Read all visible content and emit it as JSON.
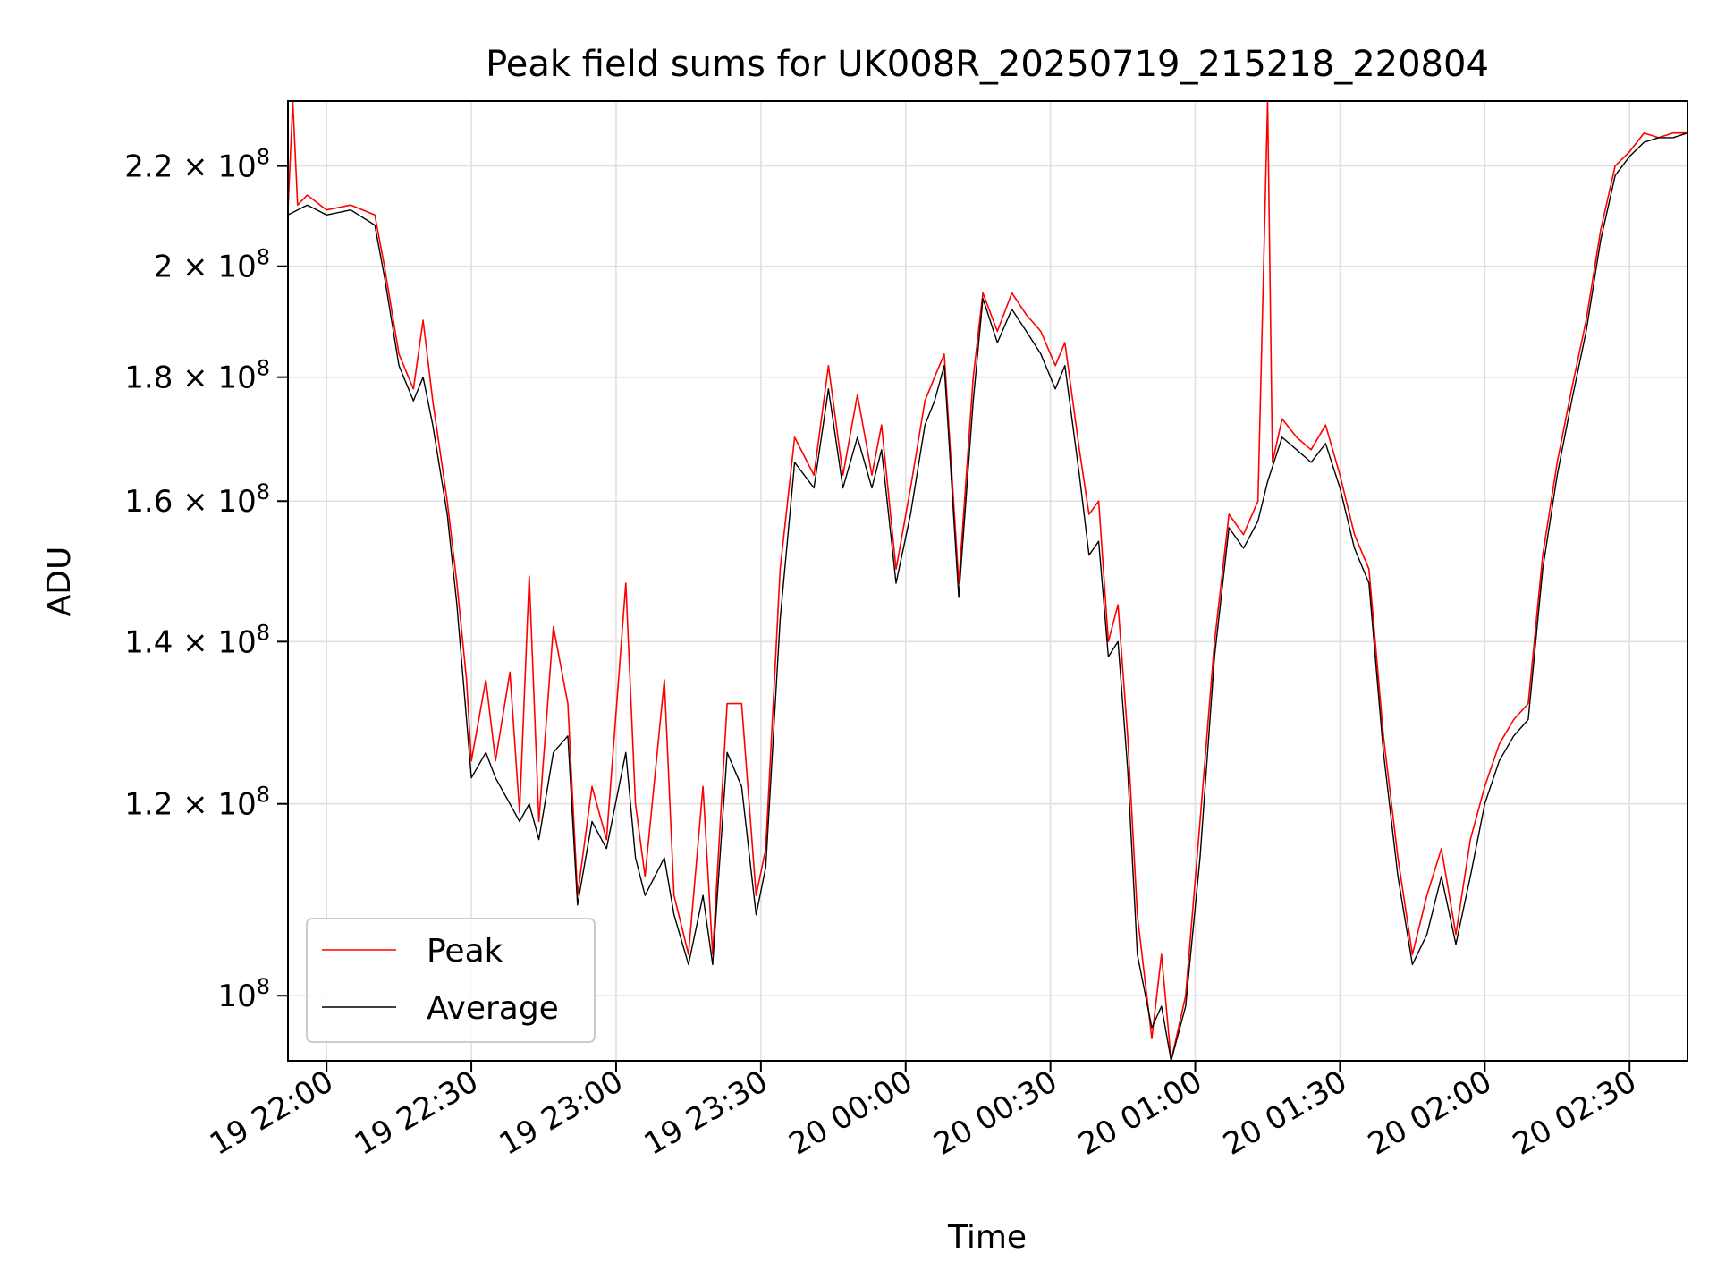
{
  "chart_data": {
    "type": "line",
    "title": "Peak field sums for UK008R_20250719_215218_220804",
    "xlabel": "Time",
    "ylabel": "ADU",
    "x_axis": {
      "kind": "datetime",
      "range": [
        "2025-07-19 21:52",
        "2025-07-20 02:42"
      ],
      "ticks": [
        {
          "value": "2025-07-19 22:00",
          "label": "19 22:00"
        },
        {
          "value": "2025-07-19 22:30",
          "label": "19 22:30"
        },
        {
          "value": "2025-07-19 23:00",
          "label": "19 23:00"
        },
        {
          "value": "2025-07-19 23:30",
          "label": "19 23:30"
        },
        {
          "value": "2025-07-20 00:00",
          "label": "20 00:00"
        },
        {
          "value": "2025-07-20 00:30",
          "label": "20 00:30"
        },
        {
          "value": "2025-07-20 01:00",
          "label": "20 01:00"
        },
        {
          "value": "2025-07-20 01:30",
          "label": "20 01:30"
        },
        {
          "value": "2025-07-20 02:00",
          "label": "20 02:00"
        },
        {
          "value": "2025-07-20 02:30",
          "label": "20 02:30"
        }
      ]
    },
    "y_axis": {
      "scale": "log",
      "range": [
        94000000,
        234000000
      ],
      "ticks": [
        {
          "value": 100000000,
          "mantissa": "",
          "exp": "8"
        },
        {
          "value": 120000000,
          "mantissa": "1.2",
          "exp": "8"
        },
        {
          "value": 140000000,
          "mantissa": "1.4",
          "exp": "8"
        },
        {
          "value": 160000000,
          "mantissa": "1.6",
          "exp": "8"
        },
        {
          "value": 180000000,
          "mantissa": "1.8",
          "exp": "8"
        },
        {
          "value": 200000000,
          "mantissa": "2",
          "exp": "8"
        },
        {
          "value": 220000000,
          "mantissa": "2.2",
          "exp": "8"
        }
      ]
    },
    "grid": true,
    "legend_position": "lower-left",
    "series": [
      {
        "name": "Peak",
        "color": "#ff0000",
        "points": [
          [
            "2025-07-19 21:52",
            211000000
          ],
          [
            "2025-07-19 21:53",
            234000000
          ],
          [
            "2025-07-19 21:54",
            212000000
          ],
          [
            "2025-07-19 21:56",
            214000000
          ],
          [
            "2025-07-19 22:00",
            211000000
          ],
          [
            "2025-07-19 22:05",
            212000000
          ],
          [
            "2025-07-19 22:10",
            210000000
          ],
          [
            "2025-07-19 22:12",
            200000000
          ],
          [
            "2025-07-19 22:15",
            184000000
          ],
          [
            "2025-07-19 22:18",
            178000000
          ],
          [
            "2025-07-19 22:20",
            190000000
          ],
          [
            "2025-07-19 22:22",
            176000000
          ],
          [
            "2025-07-19 22:25",
            160000000
          ],
          [
            "2025-07-19 22:27",
            148000000
          ],
          [
            "2025-07-19 22:29",
            135000000
          ],
          [
            "2025-07-19 22:30",
            125000000
          ],
          [
            "2025-07-19 22:33",
            135000000
          ],
          [
            "2025-07-19 22:35",
            125000000
          ],
          [
            "2025-07-19 22:38",
            136000000
          ],
          [
            "2025-07-19 22:40",
            119000000
          ],
          [
            "2025-07-19 22:42",
            149000000
          ],
          [
            "2025-07-19 22:44",
            118000000
          ],
          [
            "2025-07-19 22:47",
            142000000
          ],
          [
            "2025-07-19 22:50",
            132000000
          ],
          [
            "2025-07-19 22:52",
            110000000
          ],
          [
            "2025-07-19 22:55",
            122000000
          ],
          [
            "2025-07-19 22:58",
            116000000
          ],
          [
            "2025-07-19 23:02",
            148000000
          ],
          [
            "2025-07-19 23:04",
            120000000
          ],
          [
            "2025-07-19 23:06",
            112000000
          ],
          [
            "2025-07-19 23:10",
            135000000
          ],
          [
            "2025-07-19 23:12",
            110000000
          ],
          [
            "2025-07-19 23:15",
            104000000
          ],
          [
            "2025-07-19 23:18",
            122000000
          ],
          [
            "2025-07-19 23:20",
            104000000
          ],
          [
            "2025-07-19 23:23",
            132000000
          ],
          [
            "2025-07-19 23:26",
            132000000
          ],
          [
            "2025-07-19 23:29",
            110000000
          ],
          [
            "2025-07-19 23:31",
            115000000
          ],
          [
            "2025-07-19 23:34",
            150000000
          ],
          [
            "2025-07-19 23:37",
            170000000
          ],
          [
            "2025-07-19 23:41",
            164000000
          ],
          [
            "2025-07-19 23:44",
            182000000
          ],
          [
            "2025-07-19 23:47",
            164000000
          ],
          [
            "2025-07-19 23:50",
            177000000
          ],
          [
            "2025-07-19 23:53",
            164000000
          ],
          [
            "2025-07-19 23:55",
            172000000
          ],
          [
            "2025-07-19 23:58",
            150000000
          ],
          [
            "2025-07-20 00:01",
            162000000
          ],
          [
            "2025-07-20 00:04",
            176000000
          ],
          [
            "2025-07-20 00:06",
            180000000
          ],
          [
            "2025-07-20 00:08",
            184000000
          ],
          [
            "2025-07-20 00:11",
            148000000
          ],
          [
            "2025-07-20 00:14",
            180000000
          ],
          [
            "2025-07-20 00:16",
            195000000
          ],
          [
            "2025-07-20 00:19",
            188000000
          ],
          [
            "2025-07-20 00:22",
            195000000
          ],
          [
            "2025-07-20 00:25",
            191000000
          ],
          [
            "2025-07-20 00:28",
            188000000
          ],
          [
            "2025-07-20 00:31",
            182000000
          ],
          [
            "2025-07-20 00:33",
            186000000
          ],
          [
            "2025-07-20 00:36",
            168000000
          ],
          [
            "2025-07-20 00:38",
            158000000
          ],
          [
            "2025-07-20 00:40",
            160000000
          ],
          [
            "2025-07-20 00:42",
            140000000
          ],
          [
            "2025-07-20 00:44",
            145000000
          ],
          [
            "2025-07-20 00:46",
            128000000
          ],
          [
            "2025-07-20 00:48",
            108000000
          ],
          [
            "2025-07-20 00:51",
            96000000
          ],
          [
            "2025-07-20 00:53",
            104000000
          ],
          [
            "2025-07-20 00:55",
            94000000
          ],
          [
            "2025-07-20 00:58",
            100000000
          ],
          [
            "2025-07-20 01:01",
            118000000
          ],
          [
            "2025-07-20 01:04",
            140000000
          ],
          [
            "2025-07-20 01:07",
            158000000
          ],
          [
            "2025-07-20 01:10",
            155000000
          ],
          [
            "2025-07-20 01:13",
            160000000
          ],
          [
            "2025-07-20 01:15",
            234000000
          ],
          [
            "2025-07-20 01:16",
            166000000
          ],
          [
            "2025-07-20 01:18",
            173000000
          ],
          [
            "2025-07-20 01:21",
            170000000
          ],
          [
            "2025-07-20 01:24",
            168000000
          ],
          [
            "2025-07-20 01:27",
            172000000
          ],
          [
            "2025-07-20 01:30",
            164000000
          ],
          [
            "2025-07-20 01:33",
            155000000
          ],
          [
            "2025-07-20 01:36",
            150000000
          ],
          [
            "2025-07-20 01:39",
            128000000
          ],
          [
            "2025-07-20 01:42",
            114000000
          ],
          [
            "2025-07-20 01:45",
            104000000
          ],
          [
            "2025-07-20 01:48",
            110000000
          ],
          [
            "2025-07-20 01:51",
            115000000
          ],
          [
            "2025-07-20 01:54",
            106000000
          ],
          [
            "2025-07-20 01:57",
            116000000
          ],
          [
            "2025-07-20 02:00",
            122000000
          ],
          [
            "2025-07-20 02:03",
            127000000
          ],
          [
            "2025-07-20 02:06",
            130000000
          ],
          [
            "2025-07-20 02:09",
            132000000
          ],
          [
            "2025-07-20 02:12",
            152000000
          ],
          [
            "2025-07-20 02:15",
            166000000
          ],
          [
            "2025-07-20 02:18",
            178000000
          ],
          [
            "2025-07-20 02:21",
            190000000
          ],
          [
            "2025-07-20 02:24",
            207000000
          ],
          [
            "2025-07-20 02:27",
            220000000
          ],
          [
            "2025-07-20 02:30",
            223000000
          ],
          [
            "2025-07-20 02:33",
            227000000
          ],
          [
            "2025-07-20 02:36",
            226000000
          ],
          [
            "2025-07-20 02:39",
            227000000
          ],
          [
            "2025-07-20 02:42",
            227000000
          ]
        ]
      },
      {
        "name": "Average",
        "color": "#000000",
        "points": [
          [
            "2025-07-19 21:52",
            210000000
          ],
          [
            "2025-07-19 21:56",
            212000000
          ],
          [
            "2025-07-19 22:00",
            210000000
          ],
          [
            "2025-07-19 22:05",
            211000000
          ],
          [
            "2025-07-19 22:10",
            208000000
          ],
          [
            "2025-07-19 22:12",
            198000000
          ],
          [
            "2025-07-19 22:15",
            182000000
          ],
          [
            "2025-07-19 22:18",
            176000000
          ],
          [
            "2025-07-19 22:20",
            180000000
          ],
          [
            "2025-07-19 22:22",
            172000000
          ],
          [
            "2025-07-19 22:25",
            158000000
          ],
          [
            "2025-07-19 22:27",
            145000000
          ],
          [
            "2025-07-19 22:29",
            130000000
          ],
          [
            "2025-07-19 22:30",
            123000000
          ],
          [
            "2025-07-19 22:33",
            126000000
          ],
          [
            "2025-07-19 22:35",
            123000000
          ],
          [
            "2025-07-19 22:38",
            120000000
          ],
          [
            "2025-07-19 22:40",
            118000000
          ],
          [
            "2025-07-19 22:42",
            120000000
          ],
          [
            "2025-07-19 22:44",
            116000000
          ],
          [
            "2025-07-19 22:47",
            126000000
          ],
          [
            "2025-07-19 22:50",
            128000000
          ],
          [
            "2025-07-19 22:52",
            109000000
          ],
          [
            "2025-07-19 22:55",
            118000000
          ],
          [
            "2025-07-19 22:58",
            115000000
          ],
          [
            "2025-07-19 23:02",
            126000000
          ],
          [
            "2025-07-19 23:04",
            114000000
          ],
          [
            "2025-07-19 23:06",
            110000000
          ],
          [
            "2025-07-19 23:10",
            114000000
          ],
          [
            "2025-07-19 23:12",
            108000000
          ],
          [
            "2025-07-19 23:15",
            103000000
          ],
          [
            "2025-07-19 23:18",
            110000000
          ],
          [
            "2025-07-19 23:20",
            103000000
          ],
          [
            "2025-07-19 23:23",
            126000000
          ],
          [
            "2025-07-19 23:26",
            122000000
          ],
          [
            "2025-07-19 23:29",
            108000000
          ],
          [
            "2025-07-19 23:31",
            113000000
          ],
          [
            "2025-07-19 23:34",
            143000000
          ],
          [
            "2025-07-19 23:37",
            166000000
          ],
          [
            "2025-07-19 23:41",
            162000000
          ],
          [
            "2025-07-19 23:44",
            178000000
          ],
          [
            "2025-07-19 23:47",
            162000000
          ],
          [
            "2025-07-19 23:50",
            170000000
          ],
          [
            "2025-07-19 23:53",
            162000000
          ],
          [
            "2025-07-19 23:55",
            168000000
          ],
          [
            "2025-07-19 23:58",
            148000000
          ],
          [
            "2025-07-20 00:01",
            158000000
          ],
          [
            "2025-07-20 00:04",
            172000000
          ],
          [
            "2025-07-20 00:06",
            176000000
          ],
          [
            "2025-07-20 00:08",
            182000000
          ],
          [
            "2025-07-20 00:11",
            146000000
          ],
          [
            "2025-07-20 00:14",
            176000000
          ],
          [
            "2025-07-20 00:16",
            194000000
          ],
          [
            "2025-07-20 00:19",
            186000000
          ],
          [
            "2025-07-20 00:22",
            192000000
          ],
          [
            "2025-07-20 00:25",
            188000000
          ],
          [
            "2025-07-20 00:28",
            184000000
          ],
          [
            "2025-07-20 00:31",
            178000000
          ],
          [
            "2025-07-20 00:33",
            182000000
          ],
          [
            "2025-07-20 00:36",
            164000000
          ],
          [
            "2025-07-20 00:38",
            152000000
          ],
          [
            "2025-07-20 00:40",
            154000000
          ],
          [
            "2025-07-20 00:42",
            138000000
          ],
          [
            "2025-07-20 00:44",
            140000000
          ],
          [
            "2025-07-20 00:46",
            124000000
          ],
          [
            "2025-07-20 00:48",
            104000000
          ],
          [
            "2025-07-20 00:51",
            97000000
          ],
          [
            "2025-07-20 00:53",
            99000000
          ],
          [
            "2025-07-20 00:55",
            94000000
          ],
          [
            "2025-07-20 00:58",
            99000000
          ],
          [
            "2025-07-20 01:01",
            114000000
          ],
          [
            "2025-07-20 01:04",
            138000000
          ],
          [
            "2025-07-20 01:07",
            156000000
          ],
          [
            "2025-07-20 01:10",
            153000000
          ],
          [
            "2025-07-20 01:13",
            157000000
          ],
          [
            "2025-07-20 01:15",
            163000000
          ],
          [
            "2025-07-20 01:18",
            170000000
          ],
          [
            "2025-07-20 01:21",
            168000000
          ],
          [
            "2025-07-20 01:24",
            166000000
          ],
          [
            "2025-07-20 01:27",
            169000000
          ],
          [
            "2025-07-20 01:30",
            162000000
          ],
          [
            "2025-07-20 01:33",
            153000000
          ],
          [
            "2025-07-20 01:36",
            148000000
          ],
          [
            "2025-07-20 01:39",
            126000000
          ],
          [
            "2025-07-20 01:42",
            112000000
          ],
          [
            "2025-07-20 01:45",
            103000000
          ],
          [
            "2025-07-20 01:48",
            106000000
          ],
          [
            "2025-07-20 01:51",
            112000000
          ],
          [
            "2025-07-20 01:54",
            105000000
          ],
          [
            "2025-07-20 01:57",
            112000000
          ],
          [
            "2025-07-20 02:00",
            120000000
          ],
          [
            "2025-07-20 02:03",
            125000000
          ],
          [
            "2025-07-20 02:06",
            128000000
          ],
          [
            "2025-07-20 02:09",
            130000000
          ],
          [
            "2025-07-20 02:12",
            150000000
          ],
          [
            "2025-07-20 02:15",
            164000000
          ],
          [
            "2025-07-20 02:18",
            176000000
          ],
          [
            "2025-07-20 02:21",
            188000000
          ],
          [
            "2025-07-20 02:24",
            205000000
          ],
          [
            "2025-07-20 02:27",
            218000000
          ],
          [
            "2025-07-20 02:30",
            222000000
          ],
          [
            "2025-07-20 02:33",
            225000000
          ],
          [
            "2025-07-20 02:36",
            226000000
          ],
          [
            "2025-07-20 02:39",
            226000000
          ],
          [
            "2025-07-20 02:42",
            227000000
          ]
        ]
      }
    ]
  }
}
